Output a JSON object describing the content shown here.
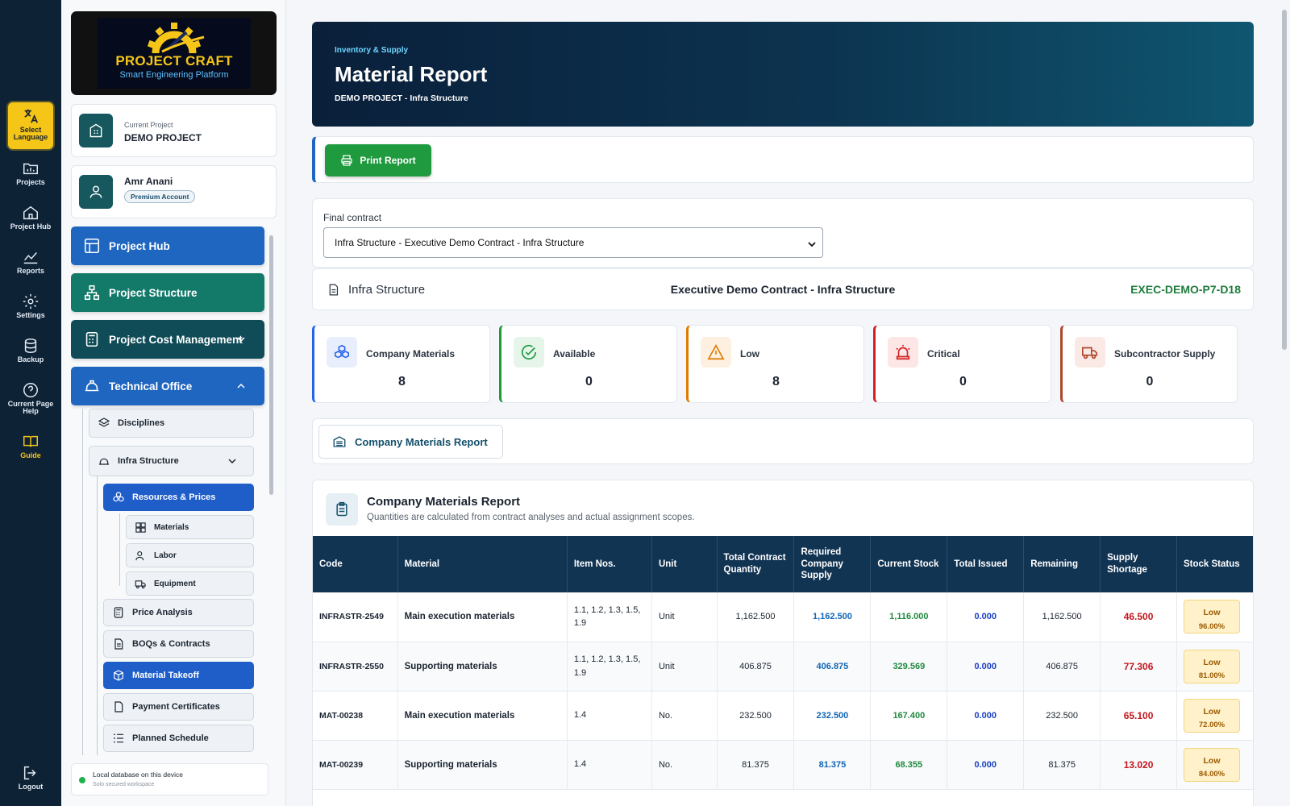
{
  "rail": {
    "items": [
      {
        "label": "Select Language",
        "icon": "translate-icon"
      },
      {
        "label": "Projects",
        "icon": "folder-icon"
      },
      {
        "label": "Project Hub",
        "icon": "home-icon"
      },
      {
        "label": "Reports",
        "icon": "chart-icon"
      },
      {
        "label": "Settings",
        "icon": "gear-icon"
      },
      {
        "label": "Backup",
        "icon": "database-icon"
      },
      {
        "label": "Current Page Help",
        "icon": "help-icon"
      },
      {
        "label": "Guide",
        "icon": "book-icon"
      },
      {
        "label": "Logout",
        "icon": "logout-icon"
      }
    ]
  },
  "brand": {
    "title": "PROJECT CRAFT",
    "subtitle": "Smart Engineering Platform"
  },
  "project": {
    "caption": "Current Project",
    "name": "DEMO PROJECT"
  },
  "user": {
    "name": "Amr Anani",
    "badge": "Premium Account"
  },
  "nav": {
    "project_hub": "Project Hub",
    "project_structure": "Project Structure",
    "project_cost_management": "Project Cost Management",
    "technical_office": "Technical Office",
    "disciplines": "Disciplines",
    "infra_structure": "Infra Structure",
    "resources_prices": "Resources & Prices",
    "materials": "Materials",
    "labor": "Labor",
    "equipment": "Equipment",
    "price_analysis": "Price Analysis",
    "boqs_contracts": "BOQs & Contracts",
    "material_takeoff": "Material Takeoff",
    "payment_certificates": "Payment Certificates",
    "planned_schedule": "Planned Schedule"
  },
  "db_status": {
    "main": "Local database on this device",
    "sub": "Solo secured workspace"
  },
  "header": {
    "kicker": "Inventory & Supply",
    "title": "Material Report",
    "subtitle": "DEMO PROJECT - Infra Structure"
  },
  "toolbar": {
    "print_label": "Print Report"
  },
  "contract": {
    "label": "Final contract",
    "selected": "Infra Structure - Executive Demo Contract - Infra Structure"
  },
  "contract_info": {
    "discipline": "Infra Structure",
    "name": "Executive Demo Contract - Infra Structure",
    "code": "EXEC-DEMO-P7-D18"
  },
  "stats": [
    {
      "label": "Company Materials",
      "value": "8",
      "color": "#2563eb"
    },
    {
      "label": "Available",
      "value": "0",
      "color": "#1f9a3f"
    },
    {
      "label": "Low",
      "value": "8",
      "color": "#e07b00"
    },
    {
      "label": "Critical",
      "value": "0",
      "color": "#d32020"
    },
    {
      "label": "Subcontractor Supply",
      "value": "0",
      "color": "#b0462b"
    }
  ],
  "tab": {
    "label": "Company Materials Report"
  },
  "report": {
    "title": "Company Materials Report",
    "subtitle": "Quantities are calculated from contract analyses and actual assignment scopes.",
    "columns": [
      "Code",
      "Material",
      "Item Nos.",
      "Unit",
      "Total Contract Quantity",
      "Required Company Supply",
      "Current Stock",
      "Total Issued",
      "Remaining",
      "Supply Shortage",
      "Stock Status"
    ],
    "rows": [
      {
        "code": "INFRASTR-2549",
        "material": "Main execution materials",
        "items": "1.1, 1.2, 1.3, 1.5, 1.9",
        "unit": "Unit",
        "total": "1,162.500",
        "required": "1,162.500",
        "stock": "1,116.000",
        "issued": "0.000",
        "remaining": "1,162.500",
        "shortage": "46.500",
        "status": "Low",
        "pct": "96.00%"
      },
      {
        "code": "INFRASTR-2550",
        "material": "Supporting materials",
        "items": "1.1, 1.2, 1.3, 1.5, 1.9",
        "unit": "Unit",
        "total": "406.875",
        "required": "406.875",
        "stock": "329.569",
        "issued": "0.000",
        "remaining": "406.875",
        "shortage": "77.306",
        "status": "Low",
        "pct": "81.00%"
      },
      {
        "code": "MAT-00238",
        "material": "Main execution materials",
        "items": "1.4",
        "unit": "No.",
        "total": "232.500",
        "required": "232.500",
        "stock": "167.400",
        "issued": "0.000",
        "remaining": "232.500",
        "shortage": "65.100",
        "status": "Low",
        "pct": "72.00%"
      },
      {
        "code": "MAT-00239",
        "material": "Supporting materials",
        "items": "1.4",
        "unit": "No.",
        "total": "81.375",
        "required": "81.375",
        "stock": "68.355",
        "issued": "0.000",
        "remaining": "81.375",
        "shortage": "13.020",
        "status": "Low",
        "pct": "84.00%"
      }
    ]
  }
}
